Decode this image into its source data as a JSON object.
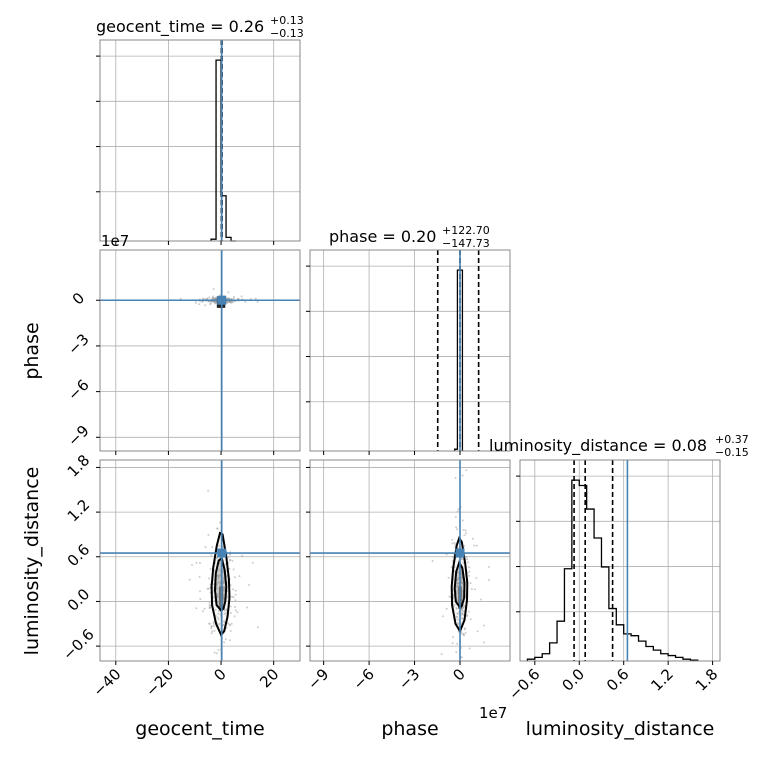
{
  "chart_data": {
    "type": "corner",
    "parameters": [
      "geocent_time",
      "phase",
      "luminosity_distance"
    ],
    "diagonal_titles": [
      {
        "name": "geocent_time",
        "prefix": "geocent_time = 0.26",
        "plus": "+0.13",
        "minus": "−0.13"
      },
      {
        "name": "phase",
        "prefix": "phase = 0.20",
        "plus": "+122.70",
        "minus": "−147.73"
      },
      {
        "name": "luminosity_distance",
        "prefix": "luminosity_distance = 0.08",
        "plus": "+0.37",
        "minus": "−0.15"
      }
    ],
    "axis_labels": {
      "x": [
        "geocent_time",
        "phase",
        "luminosity_distance"
      ],
      "y": [
        "phase",
        "luminosity_distance"
      ]
    },
    "offset_labels": {
      "phase_y": "1e7",
      "phase_x": "1e7"
    },
    "ranges": {
      "geocent_time": [
        -46,
        30
      ],
      "phase": [
        -9.9,
        3.3
      ],
      "luminosity_distance": [
        -0.8,
        1.9
      ]
    },
    "ticks": {
      "geocent_time": [
        -40,
        -20,
        0,
        20
      ],
      "phase": [
        -9,
        -6,
        -3,
        0
      ],
      "luminosity_distance": [
        -0.6,
        0.0,
        0.6,
        1.2,
        1.8
      ]
    },
    "tick_labels": {
      "geocent_time": [
        "−40",
        "−20",
        "0",
        "20"
      ],
      "phase": [
        "−9",
        "−6",
        "−3",
        "0"
      ],
      "luminosity_distance": [
        "−0.6",
        "0.0",
        "0.6",
        "1.2",
        "1.8"
      ]
    },
    "truths": {
      "geocent_time": 0.26,
      "phase": 0.0,
      "luminosity_distance": 0.65
    },
    "truth_color": "#4682b4",
    "quantiles": {
      "geocent_time": [
        0.13,
        0.26,
        0.39
      ],
      "phase": [
        -1.47,
        0.0,
        1.23
      ],
      "luminosity_distance": [
        -0.07,
        0.08,
        0.45
      ]
    },
    "histograms": {
      "geocent_time": {
        "edges": [
          -3.8,
          -1.9,
          0.0,
          1.9,
          3.8,
          5.7
        ],
        "counts": [
          0.01,
          1.0,
          0.25,
          0.02,
          0.0
        ]
      },
      "phase": {
        "edges": [
          -0.35,
          -0.17,
          0.0,
          0.16
        ],
        "counts": [
          0.01,
          1.0,
          1.0
        ]
      },
      "luminosity_distance": {
        "edges": [
          -0.7,
          -0.6,
          -0.5,
          -0.4,
          -0.3,
          -0.2,
          -0.1,
          0.0,
          0.1,
          0.2,
          0.3,
          0.4,
          0.5,
          0.6,
          0.7,
          0.8,
          0.9,
          1.0,
          1.1,
          1.2,
          1.3,
          1.4,
          1.5,
          1.6
        ],
        "counts": [
          0.01,
          0.02,
          0.04,
          0.1,
          0.22,
          0.51,
          1.0,
          0.97,
          0.84,
          0.68,
          0.52,
          0.29,
          0.2,
          0.15,
          0.14,
          0.11,
          0.08,
          0.06,
          0.04,
          0.03,
          0.02,
          0.01,
          0.005
        ]
      }
    },
    "contours": {
      "geocent_time_vs_luminosity_distance": {
        "outer": [
          [
            0.0,
            -0.45
          ],
          [
            -1.9,
            -0.3
          ],
          [
            -3.4,
            -0.05
          ],
          [
            -3.6,
            0.2
          ],
          [
            -3.0,
            0.45
          ],
          [
            -1.6,
            0.75
          ],
          [
            -0.4,
            0.92
          ],
          [
            0.6,
            0.9
          ],
          [
            2.0,
            0.6
          ],
          [
            3.0,
            0.3
          ],
          [
            3.2,
            0.05
          ],
          [
            2.5,
            -0.2
          ],
          [
            1.2,
            -0.4
          ],
          [
            0.0,
            -0.45
          ]
        ],
        "inner": [
          [
            0.0,
            -0.12
          ],
          [
            -1.7,
            -0.05
          ],
          [
            -2.3,
            0.15
          ],
          [
            -2.0,
            0.38
          ],
          [
            -0.9,
            0.55
          ],
          [
            0.3,
            0.58
          ],
          [
            1.4,
            0.42
          ],
          [
            2.0,
            0.2
          ],
          [
            1.6,
            0.0
          ],
          [
            0.9,
            -0.1
          ],
          [
            0.0,
            -0.12
          ]
        ]
      },
      "phase_vs_luminosity_distance": {
        "outer": [
          [
            0.0,
            -0.4
          ],
          [
            -0.3,
            -0.3
          ],
          [
            -0.52,
            -0.05
          ],
          [
            -0.55,
            0.2
          ],
          [
            -0.45,
            0.45
          ],
          [
            -0.22,
            0.75
          ],
          [
            -0.05,
            0.85
          ],
          [
            0.12,
            0.8
          ],
          [
            0.35,
            0.5
          ],
          [
            0.48,
            0.25
          ],
          [
            0.46,
            0.02
          ],
          [
            0.3,
            -0.25
          ],
          [
            0.0,
            -0.4
          ]
        ],
        "inner": [
          [
            0.0,
            -0.08
          ],
          [
            -0.28,
            0.0
          ],
          [
            -0.35,
            0.18
          ],
          [
            -0.25,
            0.4
          ],
          [
            -0.05,
            0.52
          ],
          [
            0.15,
            0.45
          ],
          [
            0.3,
            0.25
          ],
          [
            0.28,
            0.05
          ],
          [
            0.12,
            -0.06
          ],
          [
            0.0,
            -0.08
          ]
        ]
      }
    },
    "grid": true
  }
}
